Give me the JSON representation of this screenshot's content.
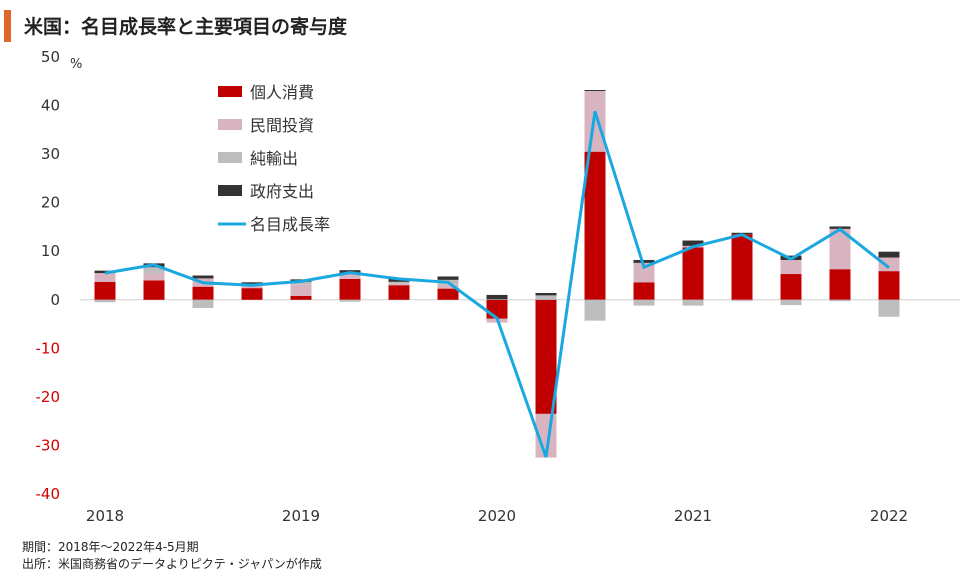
{
  "title": "米国：名目成長率と主要項目の寄与度",
  "footnotes": {
    "period": "期間：2018年～2022年4-5月期",
    "source": "出所：米国商務省のデータよりピクテ・ジャパンが作成"
  },
  "colors": {
    "title_accent": "#e0662a",
    "consumption": "#c00000",
    "investment": "#d8b4c0",
    "net_exports": "#bdbdbd",
    "government": "#333333",
    "line": "#1aa8e0",
    "negative_tick": "#d40000"
  },
  "chart_data": {
    "type": "bar",
    "stacked": true,
    "unit": "%",
    "ylim": [
      -40,
      50
    ],
    "yticks": [
      50,
      40,
      30,
      20,
      10,
      0,
      -10,
      -20,
      -30,
      -40
    ],
    "x_labels": [
      "2018",
      "2019",
      "2020",
      "2021",
      "2022"
    ],
    "categories": [
      "2018Q1",
      "2018Q2",
      "2018Q3",
      "2018Q4",
      "2019Q1",
      "2019Q2",
      "2019Q3",
      "2019Q4",
      "2020Q1",
      "2020Q2",
      "2020Q3",
      "2020Q4",
      "2021Q1",
      "2021Q2",
      "2021Q3",
      "2021Q4",
      "2022Q1"
    ],
    "legend_position": "top-left",
    "series": [
      {
        "name": "個人消費",
        "key": "consumption",
        "values": [
          3.7,
          4.0,
          2.7,
          2.4,
          0.8,
          4.3,
          3.0,
          2.3,
          -3.9,
          -23.5,
          30.5,
          3.6,
          10.8,
          13.5,
          5.3,
          6.3,
          5.9
        ]
      },
      {
        "name": "民間投資",
        "key": "investment",
        "values": [
          1.8,
          1.5,
          1.7,
          0.5,
          2.3,
          1.0,
          0.3,
          0.8,
          -0.8,
          -9.0,
          12.5,
          4.0,
          0.3,
          -0.2,
          2.9,
          8.3,
          2.8
        ]
      },
      {
        "name": "純輸出",
        "key": "net_exports",
        "values": [
          -0.5,
          1.2,
          -1.7,
          0.3,
          0.6,
          -0.4,
          0.4,
          1.0,
          0.1,
          0.9,
          -4.3,
          -1.2,
          -1.2,
          -0.1,
          -1.1,
          -0.3,
          -3.5
        ]
      },
      {
        "name": "政府支出",
        "key": "government",
        "values": [
          0.5,
          0.8,
          0.6,
          0.4,
          0.5,
          0.8,
          0.6,
          0.7,
          0.9,
          0.5,
          0.2,
          0.6,
          1.1,
          0.3,
          0.9,
          0.5,
          1.2
        ]
      },
      {
        "name": "名目成長率",
        "key": "line",
        "type": "line",
        "values": [
          5.5,
          7.2,
          3.5,
          3.0,
          3.8,
          5.6,
          4.3,
          3.6,
          -3.8,
          -32.4,
          38.8,
          6.7,
          10.9,
          13.4,
          8.4,
          14.5,
          6.6
        ]
      }
    ]
  }
}
